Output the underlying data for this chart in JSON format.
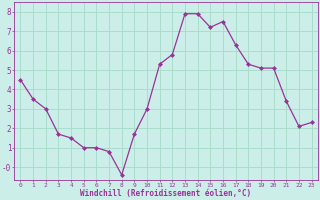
{
  "x": [
    0,
    1,
    2,
    3,
    4,
    5,
    6,
    7,
    8,
    9,
    10,
    11,
    12,
    13,
    14,
    15,
    16,
    17,
    18,
    19,
    20,
    21,
    22,
    23
  ],
  "y": [
    4.5,
    3.5,
    3.0,
    1.7,
    1.5,
    1.0,
    1.0,
    0.8,
    -0.4,
    1.7,
    3.0,
    5.3,
    5.8,
    7.9,
    7.9,
    7.2,
    7.5,
    6.3,
    5.3,
    5.1,
    5.1,
    3.4,
    2.1,
    2.3
  ],
  "line_color": "#993399",
  "marker": "D",
  "marker_size": 2,
  "bg_color": "#cceee8",
  "grid_color": "#aaddcc",
  "xlabel": "Windchill (Refroidissement éolien,°C)",
  "xlabel_color": "#993399",
  "tick_color": "#993399",
  "ylabel_ticks": [
    0,
    1,
    2,
    3,
    4,
    5,
    6,
    7,
    8
  ],
  "xlabel_ticks": [
    0,
    1,
    2,
    3,
    4,
    5,
    6,
    7,
    8,
    9,
    10,
    11,
    12,
    13,
    14,
    15,
    16,
    17,
    18,
    19,
    20,
    21,
    22,
    23
  ],
  "ylim": [
    -0.65,
    8.5
  ],
  "xlim": [
    -0.5,
    23.5
  ],
  "spine_color": "#993399",
  "figsize": [
    3.2,
    2.0
  ],
  "dpi": 100
}
